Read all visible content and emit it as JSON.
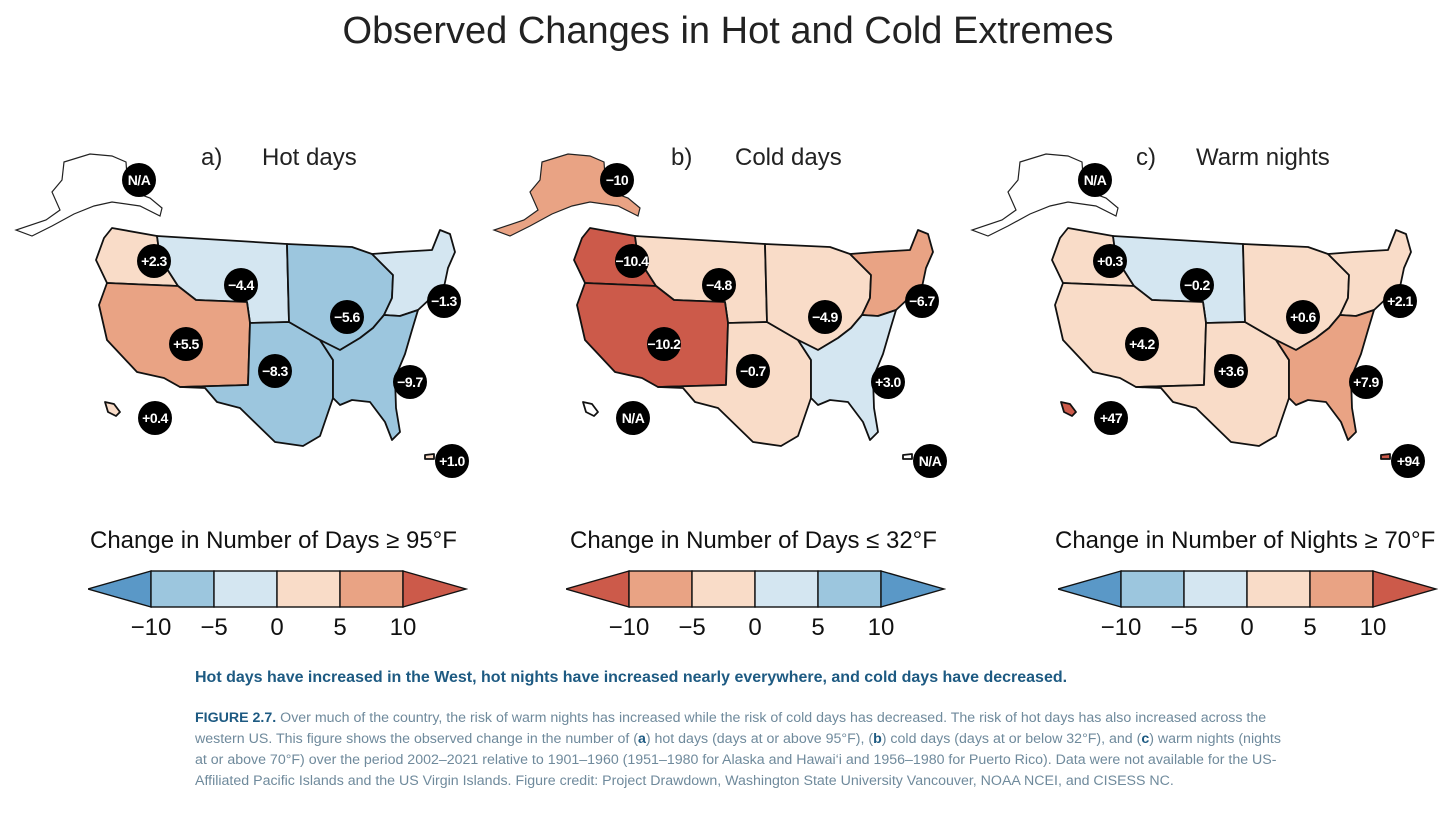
{
  "title": "Observed Changes in Hot and Cold Extremes",
  "colors": {
    "red_dark": "#cc5a4a",
    "red_med": "#e9a384",
    "red_light": "#f9dcc8",
    "blue_light": "#d4e6f1",
    "blue_med": "#9cc6de",
    "blue_dark": "#5a98c7",
    "badge": "#000000"
  },
  "panels": [
    {
      "letter": "a)",
      "title": "Hot days",
      "badges": {
        "alaska": "N/A",
        "northwest": "+2.3",
        "northern_plains": "−4.4",
        "southwest": "+5.5",
        "southern_plains": "−8.3",
        "midwest": "−5.6",
        "northeast": "−1.3",
        "southeast": "−9.7",
        "hawaii": "+0.4",
        "puerto_rico": "+1.0"
      },
      "region_colors": {
        "alaska": "none",
        "northwest": "red_light",
        "northern_plains": "blue_light",
        "southwest": "red_med",
        "southern_plains": "blue_med",
        "midwest": "blue_med",
        "northeast": "blue_light",
        "southeast": "blue_med",
        "hawaii": "red_light",
        "puerto_rico": "red_light"
      }
    },
    {
      "letter": "b)",
      "title": "Cold days",
      "badges": {
        "alaska": "−10",
        "northwest": "−10.4",
        "northern_plains": "−4.8",
        "southwest": "−10.2",
        "southern_plains": "−0.7",
        "midwest": "−4.9",
        "northeast": "−6.7",
        "southeast": "+3.0",
        "hawaii": "N/A",
        "puerto_rico": "N/A"
      },
      "region_colors": {
        "alaska": "red_med",
        "northwest": "red_dark",
        "northern_plains": "red_light",
        "southwest": "red_dark",
        "southern_plains": "red_light",
        "midwest": "red_light",
        "northeast": "red_med",
        "southeast": "blue_light",
        "hawaii": "none",
        "puerto_rico": "none"
      }
    },
    {
      "letter": "c)",
      "title": "Warm nights",
      "badges": {
        "alaska": "N/A",
        "northwest": "+0.3",
        "northern_plains": "−0.2",
        "southwest": "+4.2",
        "southern_plains": "+3.6",
        "midwest": "+0.6",
        "northeast": "+2.1",
        "southeast": "+7.9",
        "hawaii": "+47",
        "puerto_rico": "+94"
      },
      "region_colors": {
        "alaska": "none",
        "northwest": "red_light",
        "northern_plains": "blue_light",
        "southwest": "red_light",
        "southern_plains": "red_light",
        "midwest": "red_light",
        "northeast": "red_light",
        "southeast": "red_med",
        "hawaii": "red_dark",
        "puerto_rico": "red_dark"
      }
    }
  ],
  "legends": [
    {
      "title": "Change in Number of Days ≥ 95°F",
      "ticks": [
        "−10",
        "−5",
        "0",
        "5",
        "10"
      ],
      "colors": [
        "blue_dark",
        "blue_med",
        "blue_light",
        "red_light",
        "red_med",
        "red_dark"
      ]
    },
    {
      "title": "Change in Number of Days ≤ 32°F",
      "ticks": [
        "−10",
        "−5",
        "0",
        "5",
        "10"
      ],
      "colors": [
        "red_dark",
        "red_med",
        "red_light",
        "blue_light",
        "blue_med",
        "blue_dark"
      ]
    },
    {
      "title": "Change in Number of Nights ≥ 70°F",
      "ticks": [
        "−10",
        "−5",
        "0",
        "5",
        "10"
      ],
      "colors": [
        "blue_dark",
        "blue_med",
        "blue_light",
        "red_light",
        "red_med",
        "red_dark"
      ]
    }
  ],
  "headline": "Hot days have increased in the West, hot nights have increased nearly everywhere, and cold days have decreased.",
  "caption": {
    "label": "FIGURE 2.7.",
    "s1": " Over much of the country, the risk of warm nights has increased while the risk of cold days has decreased. The risk of hot days has also increased across the western US. This figure shows the observed change in the number of (",
    "a": "a",
    "s2": ") hot days (days at or above 95°F), (",
    "b": "b",
    "s3": ") cold days (days at or below 32°F), and (",
    "c": "c",
    "s4": ") warm nights (nights at or above 70°F) over the period 2002–2021 relative to 1901–1960 (1951–1980 for Alaska and Hawai‘i and 1956–1980 for Puerto Rico). Data were not available for the US-Affiliated Pacific Islands and the US Virgin Islands. Figure credit: Project Drawdown, Washington State University Vancouver, NOAA NCEI, and CISESS NC."
  }
}
